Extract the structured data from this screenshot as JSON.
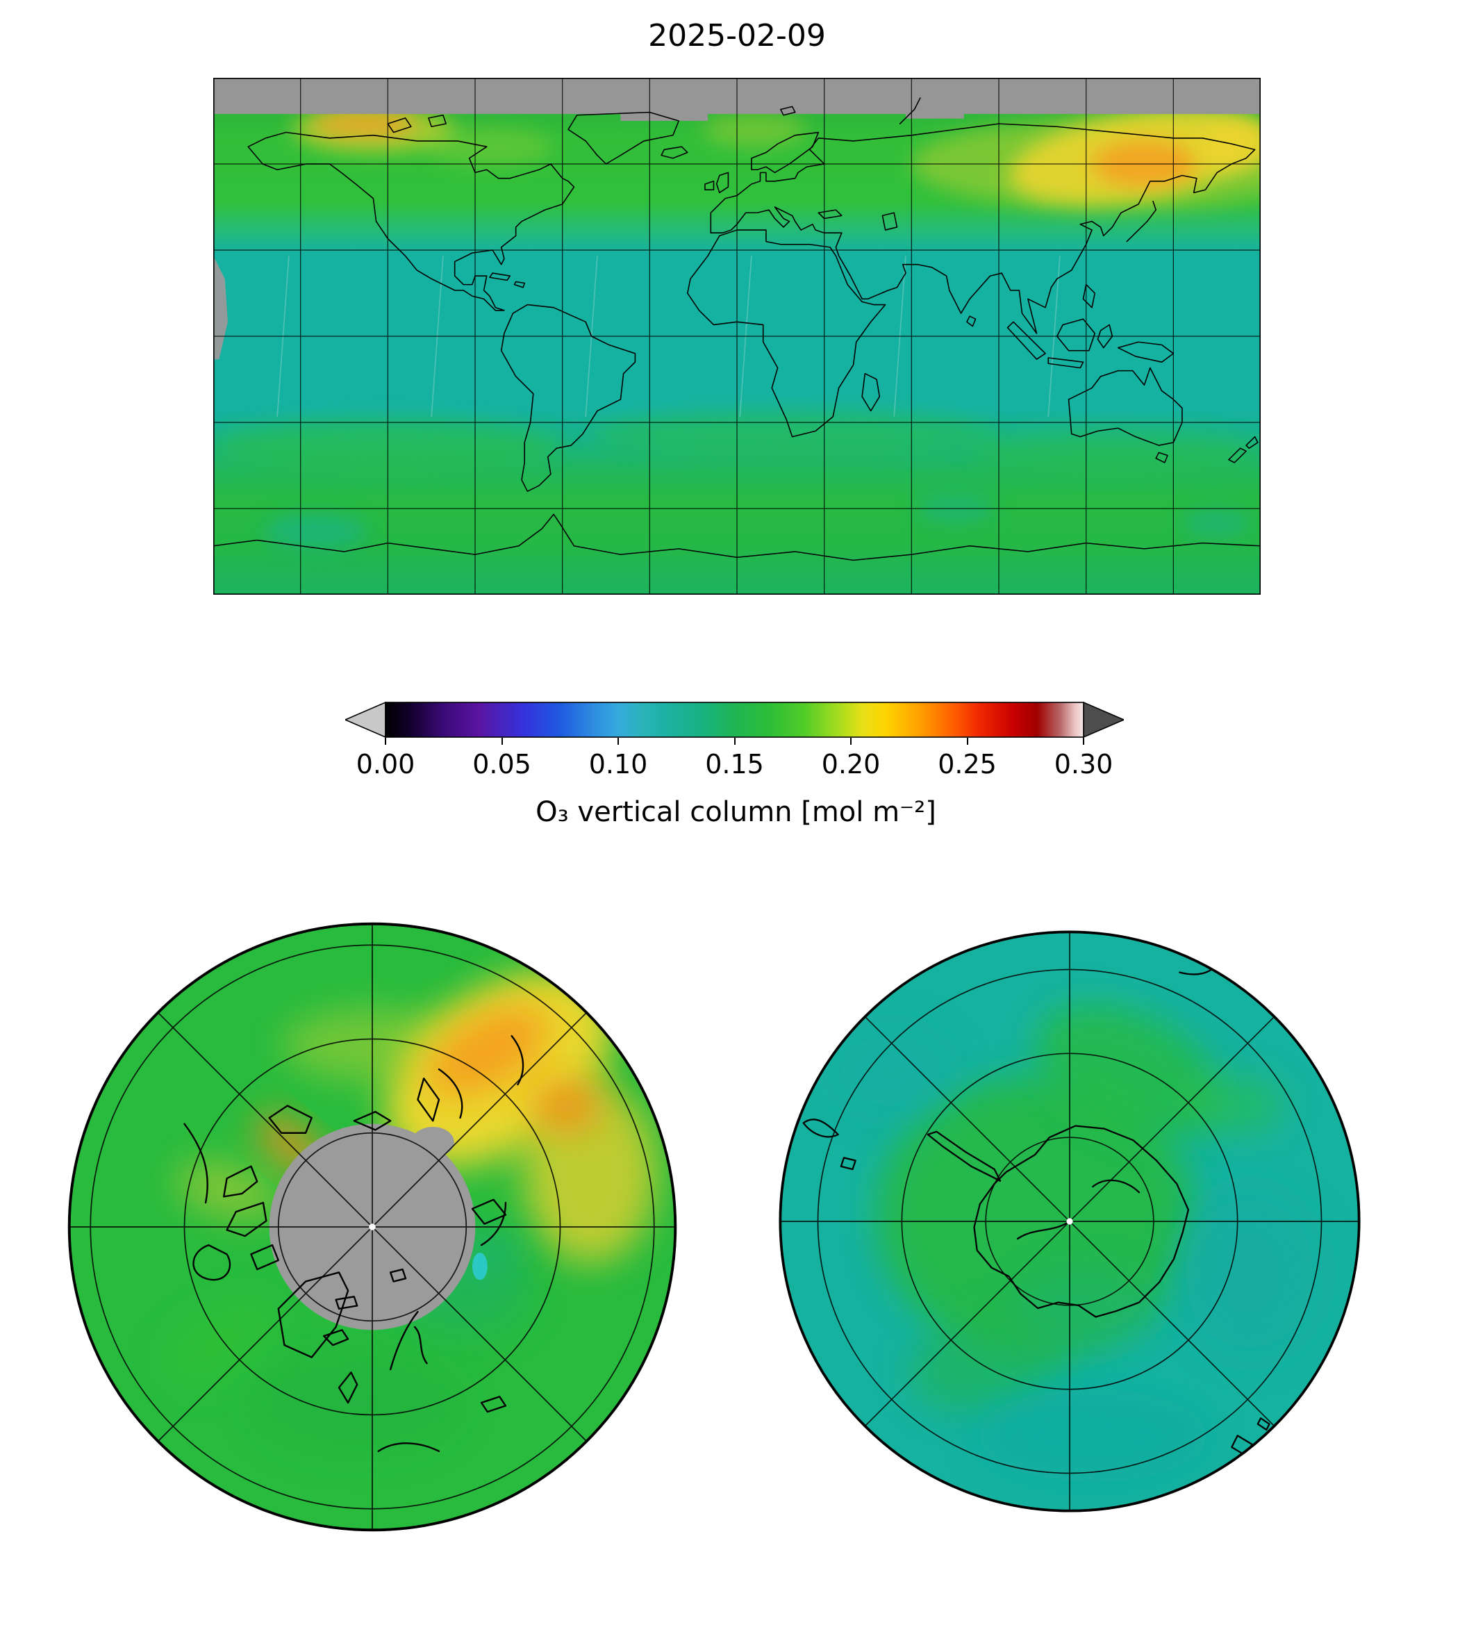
{
  "figure": {
    "title": "2025-02-09",
    "background": "#ffffff"
  },
  "colorbar": {
    "label": "O₃ vertical column [mol m⁻²]",
    "min": 0.0,
    "max": 0.3,
    "ticks": [
      "0.00",
      "0.05",
      "0.10",
      "0.15",
      "0.20",
      "0.25",
      "0.30"
    ],
    "under_color": "#c8c8c8",
    "over_color": "#4d4d4d",
    "outline_color": "#000000",
    "colormap": [
      {
        "v": 0.0,
        "c": "#000000"
      },
      {
        "v": 0.01,
        "c": "#10002a"
      },
      {
        "v": 0.025,
        "c": "#3b0a78"
      },
      {
        "v": 0.04,
        "c": "#5a14a0"
      },
      {
        "v": 0.06,
        "c": "#3333dd"
      },
      {
        "v": 0.075,
        "c": "#1f5ae0"
      },
      {
        "v": 0.09,
        "c": "#2f8fe0"
      },
      {
        "v": 0.1,
        "c": "#35aadd"
      },
      {
        "v": 0.11,
        "c": "#2bb4bb"
      },
      {
        "v": 0.12,
        "c": "#1cb2a4"
      },
      {
        "v": 0.135,
        "c": "#17b284"
      },
      {
        "v": 0.15,
        "c": "#1fb554"
      },
      {
        "v": 0.165,
        "c": "#2cbe38"
      },
      {
        "v": 0.18,
        "c": "#52cc28"
      },
      {
        "v": 0.195,
        "c": "#a8dd1e"
      },
      {
        "v": 0.205,
        "c": "#e8e018"
      },
      {
        "v": 0.215,
        "c": "#ffd400"
      },
      {
        "v": 0.23,
        "c": "#ff9e00"
      },
      {
        "v": 0.245,
        "c": "#ff5a00"
      },
      {
        "v": 0.255,
        "c": "#f02800"
      },
      {
        "v": 0.27,
        "c": "#c80000"
      },
      {
        "v": 0.28,
        "c": "#a00000"
      },
      {
        "v": 0.29,
        "c": "#b86868"
      },
      {
        "v": 0.296,
        "c": "#e8c0c0"
      },
      {
        "v": 0.3,
        "c": "#f5e8e8"
      }
    ]
  },
  "palette": {
    "no_data_gray": "#969696",
    "tropics_teal": "#16b2a1",
    "midlatitude_green": "#2fc03a",
    "high_latitude_yellow": "#f2d62e",
    "hotspot_orange": "#f59e20"
  },
  "chart_data": [
    {
      "type": "heatmap",
      "title": "2025-02-09",
      "projection": "plate-carree world map",
      "variable": "O3 vertical column",
      "units": "mol m-2",
      "lon_range": [
        -180,
        180
      ],
      "lat_range": [
        -90,
        90
      ],
      "grid_spacing_deg": 30,
      "no_data": "gray band north of ~77N (polar night) and narrow gray swath gap at west edge near equator",
      "approx_values_mol_m2": {
        "tropics": 0.12,
        "northern_midlatitudes": 0.16,
        "north_pacific_japan_maximum": 0.23,
        "alaska_nw_canada_maximum": 0.22,
        "north_atlantic_europe": 0.17,
        "southern_midlatitudes": 0.15,
        "southern_ocean_band": 0.17,
        "antarctic_coast": 0.15
      }
    },
    {
      "type": "heatmap",
      "projection": "north polar stereographic",
      "variable": "O3 vertical column",
      "units": "mol m-2",
      "no_data": "gray disc over the pole (polar night)",
      "approx_values_mol_m2": {
        "background_green": 0.17,
        "east_asia_pacific_sector_maximum": 0.23,
        "alaska_sector_maximum": 0.22,
        "midlatitude_ring": 0.165
      }
    },
    {
      "type": "heatmap",
      "projection": "south polar stereographic",
      "variable": "O3 vertical column",
      "units": "mol m-2",
      "approx_values_mol_m2": {
        "antarctic_interior": 0.155,
        "surrounding_ocean": 0.13,
        "midlatitude_edge": 0.125
      }
    }
  ]
}
